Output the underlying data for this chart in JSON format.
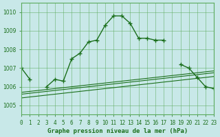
{
  "title": "Graphe pression niveau de la mer (hPa)",
  "background_color": "#c8e8e8",
  "grid_color": "#5aaa5a",
  "line_color": "#1a6e1a",
  "x_labels": [
    "0",
    "1",
    "2",
    "3",
    "4",
    "5",
    "6",
    "7",
    "8",
    "9",
    "10",
    "11",
    "12",
    "13",
    "14",
    "15",
    "16",
    "17",
    "18",
    "19",
    "20",
    "21",
    "22",
    "23"
  ],
  "xlim": [
    0,
    23
  ],
  "ylim": [
    1004.5,
    1010.5
  ],
  "yticks": [
    1005,
    1006,
    1007,
    1008,
    1009,
    1010
  ],
  "main_line": [
    1007.0,
    1006.4,
    null,
    1006.0,
    1006.4,
    1006.3,
    1007.5,
    1007.8,
    1008.4,
    1008.5,
    1009.3,
    1009.8,
    1009.8,
    1009.4,
    1008.6,
    1008.6,
    1008.5,
    1008.5,
    null,
    1007.2,
    1007.0,
    1006.5,
    1006.0,
    1005.9
  ],
  "ref_line1": [
    1005.7,
    1005.75,
    1005.8,
    1005.85,
    1005.9,
    1005.95,
    1006.0,
    1006.05,
    1006.1,
    1006.15,
    1006.2,
    1006.25,
    1006.3,
    1006.35,
    1006.4,
    1006.45,
    1006.5,
    1006.55,
    1006.6,
    1006.65,
    1006.7,
    1006.75,
    1006.8,
    1006.85
  ],
  "ref_line2": [
    1005.6,
    1005.65,
    1005.7,
    1005.75,
    1005.8,
    1005.85,
    1005.9,
    1005.95,
    1006.0,
    1006.05,
    1006.1,
    1006.15,
    1006.2,
    1006.25,
    1006.3,
    1006.35,
    1006.4,
    1006.45,
    1006.5,
    1006.55,
    1006.6,
    1006.65,
    1006.7,
    1006.75
  ],
  "ref_line3": [
    1005.4,
    1005.45,
    1005.5,
    1005.55,
    1005.6,
    1005.65,
    1005.7,
    1005.75,
    1005.8,
    1005.85,
    1005.9,
    1005.95,
    1006.0,
    1006.05,
    1006.1,
    1006.15,
    1006.2,
    1006.25,
    1006.3,
    1006.35,
    1006.4,
    1006.45,
    1006.5,
    1006.55
  ]
}
